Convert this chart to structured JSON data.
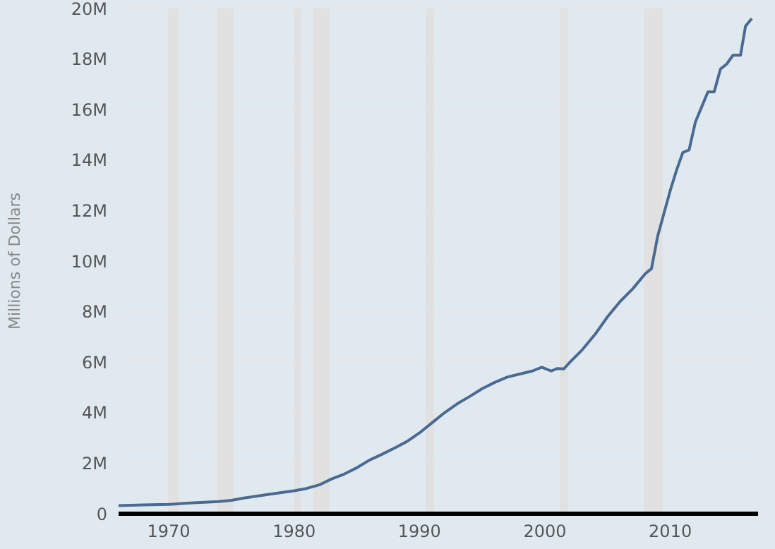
{
  "chart_data": {
    "type": "line",
    "ylabel": "Millions of Dollars",
    "x": [
      1966,
      1968,
      1970,
      1972,
      1974,
      1975,
      1976,
      1978,
      1980,
      1981,
      1982,
      1983,
      1984,
      1985,
      1986,
      1987,
      1988,
      1989,
      1990,
      1991,
      1992,
      1993,
      1994,
      1995,
      1996,
      1997,
      1998,
      1999,
      1999.75,
      2000.5,
      2001,
      2001.5,
      2002,
      2003,
      2004,
      2005,
      2006,
      2007,
      2008,
      2008.5,
      2009,
      2009.5,
      2010,
      2010.5,
      2011,
      2011.5,
      2012,
      2012.5,
      2013,
      2013.5,
      2014,
      2014.5,
      2015,
      2015.6,
      2016,
      2016.5
    ],
    "series": [
      {
        "color": "#4a6a92",
        "values": [
          320000,
          350000,
          370000,
          430000,
          480000,
          530000,
          620000,
          770000,
          910000,
          1000000,
          1140000,
          1380000,
          1570000,
          1820000,
          2120000,
          2350000,
          2600000,
          2860000,
          3200000,
          3600000,
          4000000,
          4350000,
          4640000,
          4950000,
          5200000,
          5410000,
          5530000,
          5650000,
          5800000,
          5650000,
          5750000,
          5730000,
          6000000,
          6500000,
          7100000,
          7800000,
          8400000,
          8900000,
          9500000,
          9700000,
          11000000,
          11900000,
          12800000,
          13600000,
          14300000,
          14400000,
          15500000,
          16100000,
          16700000,
          16700000,
          17600000,
          17800000,
          18150000,
          18150000,
          19300000,
          19600000
        ]
      }
    ],
    "xlim": [
      1966,
      2017
    ],
    "xticks": [
      1970,
      1980,
      1990,
      2000,
      2010
    ],
    "ylim": [
      0,
      20000000
    ],
    "yticks": [
      0,
      {
        "value": 2000000,
        "label": "2M"
      },
      {
        "value": 4000000,
        "label": "4M"
      },
      {
        "value": 6000000,
        "label": "6M"
      },
      {
        "value": 8000000,
        "label": "8M"
      },
      {
        "value": 10000000,
        "label": "10M"
      },
      {
        "value": 12000000,
        "label": "12M"
      },
      {
        "value": 14000000,
        "label": "14M"
      },
      {
        "value": 16000000,
        "label": "16M"
      },
      {
        "value": 18000000,
        "label": "18M"
      },
      {
        "value": 20000000,
        "label": "20M"
      }
    ],
    "bands": [
      {
        "axis": "x",
        "from": 1969.92,
        "to": 1970.83,
        "color": "#e1e1e1"
      },
      {
        "axis": "x",
        "from": 1973.83,
        "to": 1975.17,
        "color": "#e1e1e1"
      },
      {
        "axis": "x",
        "from": 1980.0,
        "to": 1980.5,
        "color": "#e1e1e1"
      },
      {
        "axis": "x",
        "from": 1981.5,
        "to": 1982.83,
        "color": "#e1e1e1"
      },
      {
        "axis": "x",
        "from": 1990.5,
        "to": 1991.17,
        "color": "#e1e1e1"
      },
      {
        "axis": "x",
        "from": 2001.17,
        "to": 2001.83,
        "color": "#e1e1e1"
      },
      {
        "axis": "x",
        "from": 2007.92,
        "to": 2009.42,
        "color": "#e1e1e1"
      }
    ],
    "grid": "y",
    "legend": false,
    "marker": "none",
    "line_style": "solid"
  }
}
